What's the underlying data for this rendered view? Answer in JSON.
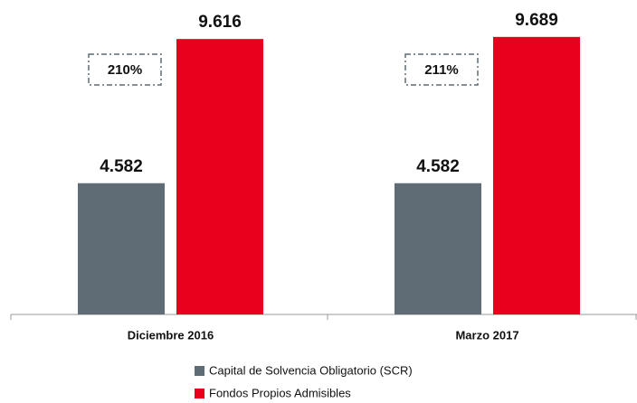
{
  "chart_data": {
    "type": "bar",
    "categories": [
      "Diciembre 2016",
      "Marzo 2017"
    ],
    "series": [
      {
        "name": "Capital de Solvencia Obligatorio (SCR)",
        "color": "#5f6b75",
        "values": [
          4582,
          4582
        ],
        "value_labels": [
          "4.582",
          "4.582"
        ]
      },
      {
        "name": "Fondos Propios Admisibles",
        "color": "#e8001c",
        "values": [
          9616,
          9689
        ],
        "value_labels": [
          "9.616",
          "9.689"
        ]
      }
    ],
    "annotations": [
      "210%",
      "211%"
    ],
    "ylim": [
      0,
      10000
    ]
  }
}
